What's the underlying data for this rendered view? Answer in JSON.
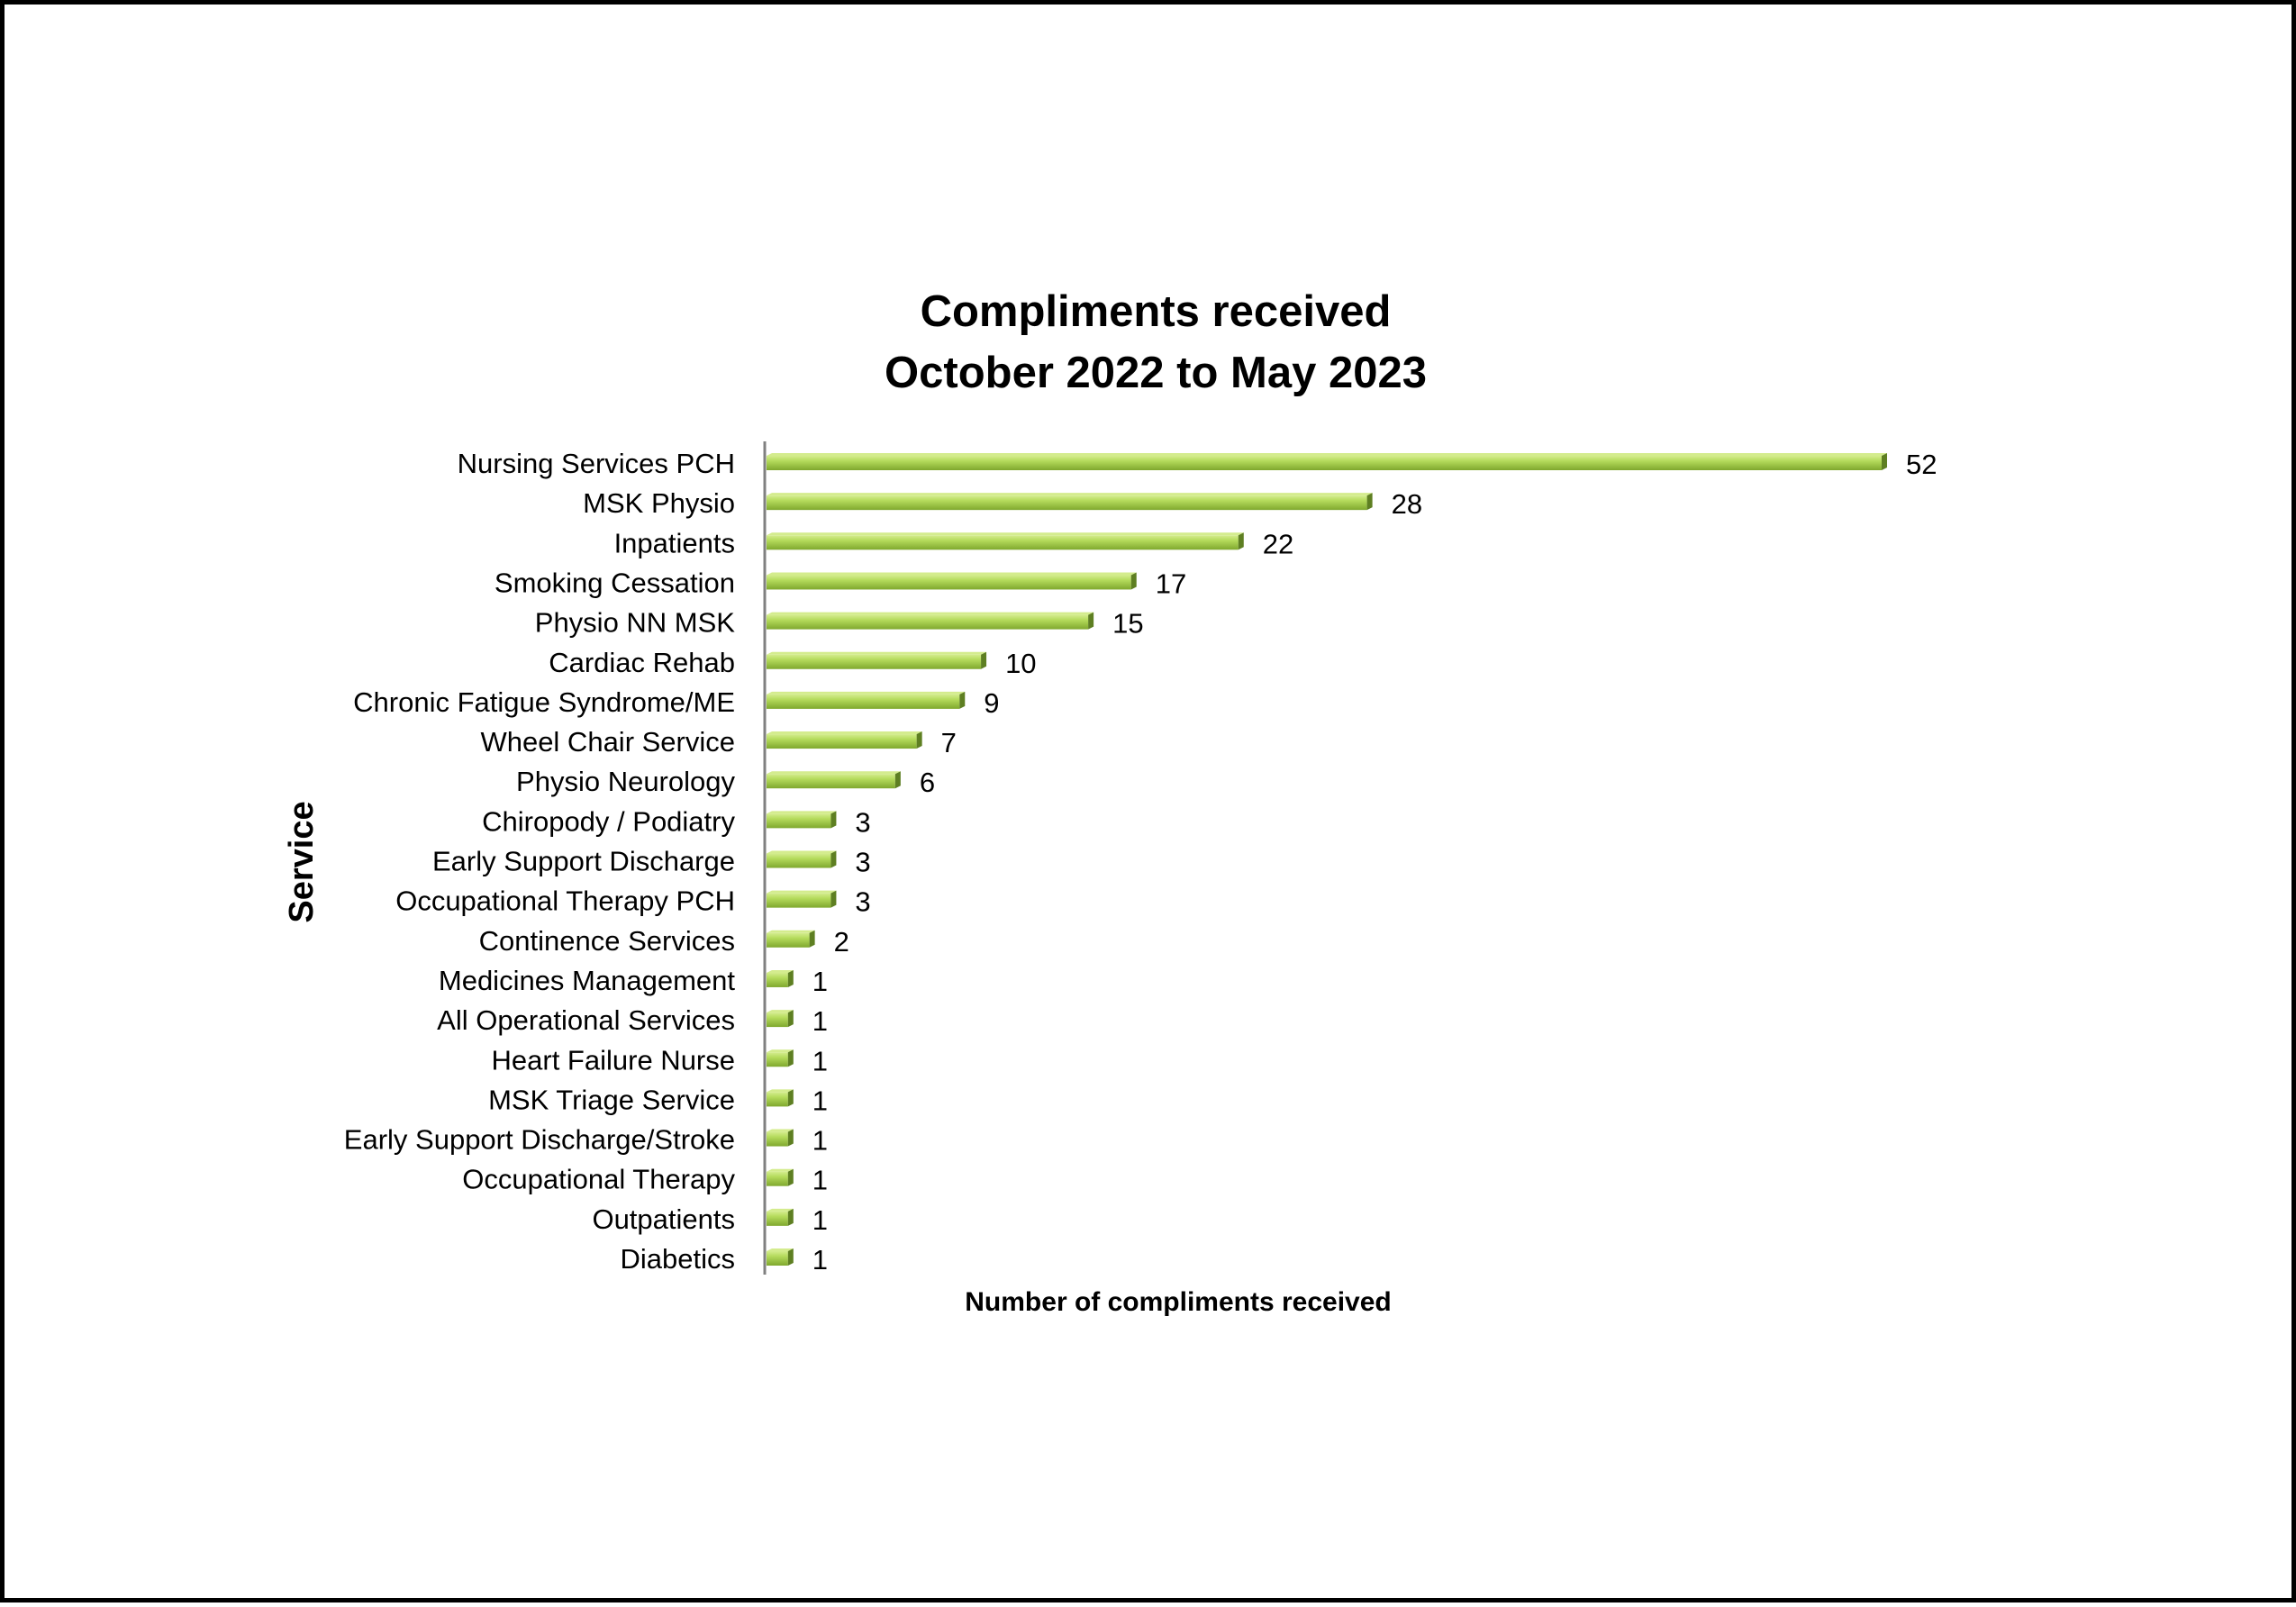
{
  "chart_data": {
    "type": "bar",
    "orientation": "horizontal",
    "title": [
      "Compliments received",
      "October 2022 to May 2023"
    ],
    "xlabel": "Number of compliments received",
    "ylabel": "Service",
    "categories": [
      "Nursing Services PCH",
      "MSK Physio",
      "Inpatients",
      "Smoking Cessation",
      "Physio NN MSK",
      "Cardiac Rehab",
      "Chronic Fatigue Syndrome/ME",
      "Wheel Chair Service",
      "Physio Neurology",
      "Chiropody / Podiatry",
      "Early Support  Discharge",
      "Occupational Therapy PCH",
      "Continence Services",
      "Medicines Management",
      "All Operational Services",
      "Heart Failure Nurse",
      "MSK Triage Service",
      "Early Support Discharge/Stroke",
      "Occupational Therapy ",
      "Outpatients",
      "Diabetics"
    ],
    "values": [
      52,
      28,
      22,
      17,
      15,
      10,
      9,
      7,
      6,
      3,
      3,
      3,
      2,
      1,
      1,
      1,
      1,
      1,
      1,
      1,
      1
    ],
    "xlim": [
      0,
      52
    ],
    "grid": false,
    "legend": "none",
    "data_labels": true,
    "bar_color": "#9ACD3C",
    "bar_highlight_color": "#D4EC8E",
    "bar_shadow_color": "#5E7F22"
  }
}
